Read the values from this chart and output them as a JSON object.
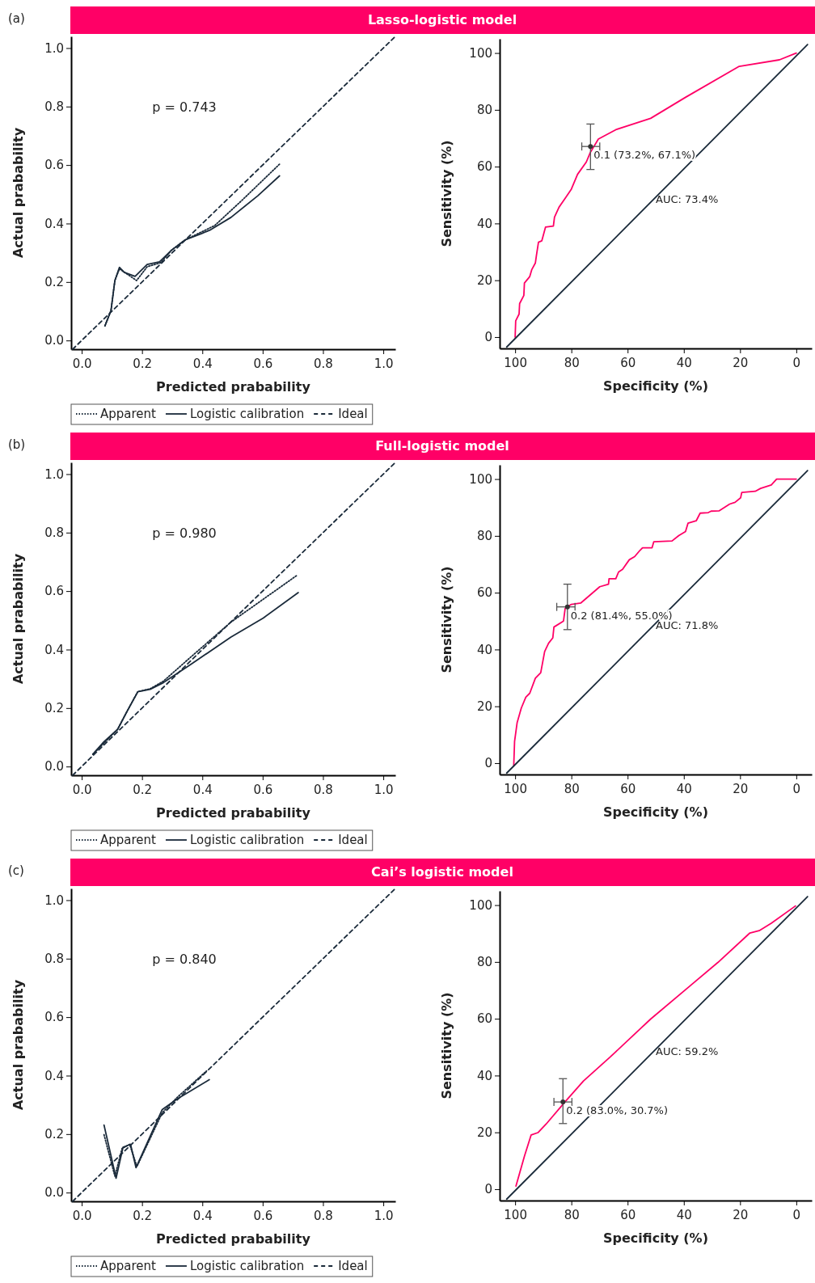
{
  "chart_data": [
    {
      "type": "line",
      "title": "Lasso-logistic model",
      "xlabel": "Predicted prabability",
      "ylabel": "Actual prabability",
      "xlim": [
        -0.035,
        1.04
      ],
      "ylim": [
        -0.03,
        1.04
      ],
      "xticks": [
        {
          "value": 0,
          "label": "0.0"
        },
        {
          "value": 0.2,
          "label": "0.2"
        },
        {
          "value": 0.4,
          "label": "0.4"
        },
        {
          "value": 0.6,
          "label": "0.6"
        },
        {
          "value": 0.8,
          "label": "0.8"
        },
        {
          "value": 1,
          "label": "1.0"
        }
      ],
      "yticks": [
        {
          "value": 0,
          "label": "0.0"
        },
        {
          "value": 0.2,
          "label": "0.2"
        },
        {
          "value": 0.4,
          "label": "0.4"
        },
        {
          "value": 0.6,
          "label": "0.6"
        },
        {
          "value": 0.8,
          "label": "0.8"
        },
        {
          "value": 1,
          "label": "1.0"
        }
      ],
      "legend": "bottom",
      "annotations": [
        "(a)",
        "p = 0.743"
      ],
      "series": [
        {
          "name": "Apparent",
          "color": "#1a2a3a",
          "line_style": "dotted",
          "x": [
            0.077,
            0.097,
            0.11,
            0.125,
            0.182,
            0.217,
            0.262,
            0.298,
            0.343,
            0.441,
            0.53,
            0.656
          ],
          "values": [
            0.05,
            0.102,
            0.205,
            0.245,
            0.205,
            0.252,
            0.266,
            0.309,
            0.344,
            0.393,
            0.478,
            0.603
          ]
        },
        {
          "name": "Logistic calibration",
          "color": "#1a2a3a",
          "line_style": "solid",
          "x": [
            0.077,
            0.097,
            0.11,
            0.125,
            0.141,
            0.177,
            0.217,
            0.258,
            0.298,
            0.343,
            0.396,
            0.428,
            0.495,
            0.584,
            0.656
          ],
          "values": [
            0.05,
            0.102,
            0.205,
            0.25,
            0.233,
            0.219,
            0.26,
            0.269,
            0.309,
            0.344,
            0.365,
            0.379,
            0.421,
            0.495,
            0.563
          ]
        },
        {
          "name": "Ideal",
          "color": "#1a2a3a",
          "line_style": "dashed",
          "x": [
            -0.03,
            1.04
          ],
          "values": [
            -0.03,
            1.04
          ]
        }
      ]
    },
    {
      "type": "line",
      "xlabel": "Specificity (%)",
      "ylabel": "Sensitivity (%)",
      "xlim": [
        105.5,
        -5.5
      ],
      "ylim": [
        -4,
        105
      ],
      "xticks": [
        100,
        80,
        60,
        40,
        20,
        0
      ],
      "yticks": [
        0,
        20,
        40,
        60,
        80,
        100
      ],
      "annotations": [
        {
          "text": "0.1 (73.2%, 67.1%)",
          "x": 73.2,
          "y": 67.1
        },
        "AUC: 73.4%"
      ],
      "series": [
        {
          "color": "#ff0066",
          "line_style": "solid",
          "x": [
            100,
            99.8,
            98.6,
            98.4,
            96.9,
            96.7,
            94.8,
            94.1,
            92.8,
            92.4,
            91.7,
            90.5,
            89.2,
            86.4,
            86.0,
            84.4,
            81.9,
            80.0,
            77.8,
            74.7,
            73.3,
            70.4,
            64.2,
            51.8,
            39.4,
            20.3,
            6.0,
            0
          ],
          "values": [
            0,
            5.7,
            8.1,
            11.8,
            14.7,
            19.0,
            21.3,
            23.7,
            26.1,
            28.9,
            33.4,
            33.9,
            38.7,
            39.1,
            42.2,
            45.7,
            49.3,
            52.1,
            57.3,
            61.6,
            64.9,
            69.7,
            73.0,
            77.0,
            84.4,
            95.3,
            97.6,
            100
          ]
        },
        {
          "color": "#1a2a3a",
          "line_style": "solid",
          "x": [
            103,
            -4
          ],
          "values": [
            -3.5,
            103
          ]
        },
        {
          "type": "scatter",
          "color": "#333333",
          "x": [
            73.2
          ],
          "values": [
            67.1
          ],
          "errors": [
            [
              59,
              75
            ]
          ],
          "xerrors": [
            [
              69.9,
              76.3
            ]
          ]
        }
      ]
    },
    {
      "type": "line",
      "title": "Full-logistic model",
      "xlabel": "Predicted prabability",
      "ylabel": "Actual prabability",
      "xlim": [
        -0.035,
        1.04
      ],
      "ylim": [
        -0.03,
        1.04
      ],
      "xticks": [
        {
          "value": 0,
          "label": "0.0"
        },
        {
          "value": 0.2,
          "label": "0.2"
        },
        {
          "value": 0.4,
          "label": "0.4"
        },
        {
          "value": 0.6,
          "label": "0.6"
        },
        {
          "value": 0.8,
          "label": "0.8"
        },
        {
          "value": 1,
          "label": "1.0"
        }
      ],
      "yticks": [
        {
          "value": 0,
          "label": "0.0"
        },
        {
          "value": 0.2,
          "label": "0.2"
        },
        {
          "value": 0.4,
          "label": "0.4"
        },
        {
          "value": 0.6,
          "label": "0.6"
        },
        {
          "value": 0.8,
          "label": "0.8"
        },
        {
          "value": 1,
          "label": "1.0"
        }
      ],
      "legend": "bottom",
      "annotations": [
        "(b)",
        "p = 0.980"
      ],
      "series": [
        {
          "name": "Apparent",
          "color": "#1a2a3a",
          "line_style": "dotted",
          "x": [
            0.037,
            0.119,
            0.15,
            0.186,
            0.227,
            0.271,
            0.369,
            0.495,
            0.714
          ],
          "values": [
            0.042,
            0.127,
            0.188,
            0.256,
            0.266,
            0.292,
            0.381,
            0.494,
            0.654
          ]
        },
        {
          "name": "Logistic calibration",
          "color": "#1a2a3a",
          "line_style": "solid",
          "x": [
            0.037,
            0.074,
            0.119,
            0.15,
            0.186,
            0.227,
            0.271,
            0.36,
            0.495,
            0.602,
            0.718
          ],
          "values": [
            0.042,
            0.085,
            0.127,
            0.188,
            0.256,
            0.264,
            0.287,
            0.348,
            0.443,
            0.508,
            0.595
          ]
        },
        {
          "name": "Ideal",
          "color": "#1a2a3a",
          "line_style": "dashed",
          "x": [
            -0.03,
            1.04
          ],
          "values": [
            -0.03,
            1.04
          ]
        }
      ]
    },
    {
      "type": "line",
      "xlabel": "Specificity (%)",
      "ylabel": "Sensitivity (%)",
      "xlim": [
        105.5,
        -5.5
      ],
      "ylim": [
        -4,
        105
      ],
      "xticks": [
        100,
        80,
        60,
        40,
        20,
        0
      ],
      "yticks": [
        0,
        20,
        40,
        60,
        80,
        100
      ],
      "annotations": [
        {
          "text": "0.2 (81.4%, 55.0%)",
          "x": 81.4,
          "y": 55.0
        },
        "AUC: 71.8%"
      ],
      "series": [
        {
          "color": "#ff0066",
          "line_style": "solid",
          "x": [
            100.5,
            100.2,
            99.3,
            97.8,
            96.2,
            94.8,
            92.8,
            90.9,
            89.5,
            88.1,
            86.6,
            86.2,
            82.8,
            82.2,
            80.0,
            76.6,
            69.9,
            66.8,
            66.6,
            64.2,
            63.2,
            61.8,
            59.4,
            57.5,
            55.6,
            54.7,
            51.3,
            50.7,
            44.2,
            41.8,
            39.4,
            38.5,
            35.6,
            34.2,
            31.3,
            30.3,
            27.5,
            23.7,
            21.8,
            19.8,
            19.4,
            14.6,
            12.7,
            8.9,
            7.0,
            0
          ],
          "values": [
            -1,
            7.6,
            14.2,
            19.4,
            23.2,
            24.6,
            29.9,
            31.8,
            39.3,
            42.2,
            44.1,
            47.9,
            50.0,
            54.5,
            55.9,
            56.4,
            62.1,
            63.0,
            64.9,
            64.9,
            67.3,
            68.2,
            71.6,
            72.7,
            74.9,
            75.8,
            75.8,
            77.9,
            78.2,
            80.1,
            81.5,
            84.5,
            85.3,
            88.0,
            88.2,
            88.7,
            88.8,
            91.2,
            91.8,
            93.4,
            95.3,
            95.7,
            96.7,
            97.9,
            100,
            100
          ]
        },
        {
          "color": "#1a2a3a",
          "line_style": "solid",
          "x": [
            103,
            -4
          ],
          "values": [
            -3.5,
            103
          ]
        },
        {
          "type": "scatter",
          "color": "#333333",
          "x": [
            81.4
          ],
          "values": [
            55.0
          ],
          "errors": [
            [
              47,
              63
            ]
          ],
          "xerrors": [
            [
              78.7,
              85.2
            ]
          ]
        }
      ]
    },
    {
      "type": "line",
      "title": "Cai’s logistic model",
      "xlabel": "Predicted prabability",
      "ylabel": "Actual prabability",
      "xlim": [
        -0.035,
        1.04
      ],
      "ylim": [
        -0.03,
        1.04
      ],
      "xticks": [
        {
          "value": 0,
          "label": "0.0"
        },
        {
          "value": 0.2,
          "label": "0.2"
        },
        {
          "value": 0.4,
          "label": "0.4"
        },
        {
          "value": 0.6,
          "label": "0.6"
        },
        {
          "value": 0.8,
          "label": "0.8"
        },
        {
          "value": 1,
          "label": "1.0"
        }
      ],
      "yticks": [
        {
          "value": 0,
          "label": "0.0"
        },
        {
          "value": 0.2,
          "label": "0.2"
        },
        {
          "value": 0.4,
          "label": "0.4"
        },
        {
          "value": 0.6,
          "label": "0.6"
        },
        {
          "value": 0.8,
          "label": "0.8"
        },
        {
          "value": 1,
          "label": "1.0"
        }
      ],
      "legend": "bottom",
      "annotations": [
        "(c)",
        "p = 0.840"
      ],
      "series": [
        {
          "name": "Apparent",
          "color": "#1a2a3a",
          "line_style": "dotted",
          "x": [
            0.074,
            0.11,
            0.134,
            0.159,
            0.183,
            0.267,
            0.316,
            0.414
          ],
          "values": [
            0.198,
            0.056,
            0.151,
            0.165,
            0.089,
            0.273,
            0.325,
            0.416
          ]
        },
        {
          "name": "Logistic calibration",
          "color": "#1a2a3a",
          "line_style": "solid",
          "x": [
            0.074,
            0.114,
            0.137,
            0.162,
            0.18,
            0.267,
            0.316,
            0.423
          ],
          "values": [
            0.231,
            0.049,
            0.155,
            0.165,
            0.085,
            0.284,
            0.32,
            0.386
          ]
        },
        {
          "name": "Ideal",
          "color": "#1a2a3a",
          "line_style": "dashed",
          "x": [
            -0.03,
            1.04
          ],
          "values": [
            -0.03,
            1.04
          ]
        }
      ]
    },
    {
      "type": "line",
      "xlabel": "Specificity (%)",
      "ylabel": "Sensitivity (%)",
      "xlim": [
        105.5,
        -5.5
      ],
      "ylim": [
        -4,
        105
      ],
      "xticks": [
        100,
        80,
        60,
        40,
        20,
        0
      ],
      "yticks": [
        0,
        20,
        40,
        60,
        80,
        100
      ],
      "annotations": [
        {
          "text": "0.2 (83.0%, 30.7%)",
          "x": 83.0,
          "y": 30.7
        },
        "AUC: 59.2%"
      ],
      "series": [
        {
          "color": "#ff0066",
          "line_style": "solid",
          "x": [
            99.7,
            96.7,
            94.3,
            91.9,
            89.0,
            82.3,
            75.7,
            66.1,
            51.8,
            37.5,
            27.9,
            16.5,
            13.2,
            8.9,
            0.3
          ],
          "values": [
            1.1,
            11.6,
            19.1,
            19.9,
            22.9,
            30.7,
            38.1,
            46.6,
            59.9,
            71.8,
            79.8,
            90.2,
            91.0,
            93.6,
            99.7
          ]
        },
        {
          "color": "#1a2a3a",
          "line_style": "solid",
          "x": [
            103,
            -4
          ],
          "values": [
            -3.5,
            103
          ]
        },
        {
          "type": "scatter",
          "color": "#333333",
          "x": [
            83.0
          ],
          "values": [
            30.7
          ],
          "errors": [
            [
              23.1,
              38.9
            ]
          ],
          "xerrors": [
            [
              79.8,
              86.2
            ]
          ]
        }
      ]
    }
  ]
}
